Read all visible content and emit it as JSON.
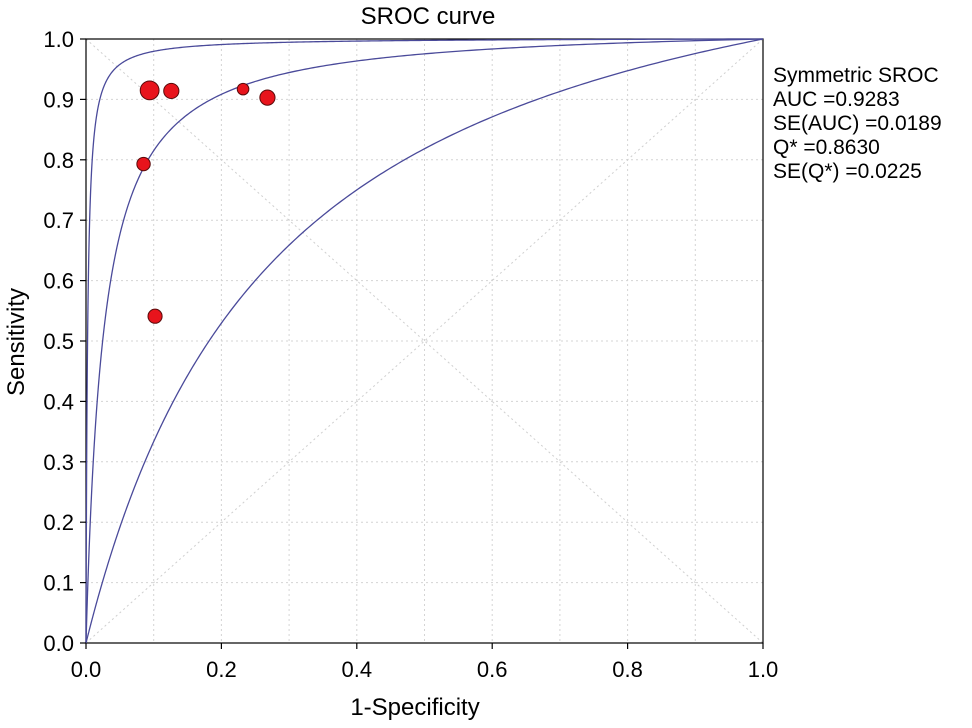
{
  "chart_data": {
    "type": "scatter",
    "title": "SROC curve",
    "xlabel": "1-Specificity",
    "ylabel": "Sensitivity",
    "xlim": [
      0.0,
      1.0
    ],
    "ylim": [
      0.0,
      1.0
    ],
    "x_ticks": [
      "0.0",
      "0.2",
      "0.4",
      "0.6",
      "0.8",
      "1.0"
    ],
    "y_ticks": [
      "0.0",
      "0.1",
      "0.2",
      "0.3",
      "0.4",
      "0.5",
      "0.6",
      "0.7",
      "0.8",
      "0.9",
      "1.0"
    ],
    "grid": true,
    "diagonals": true,
    "studies": [
      {
        "x": 0.094,
        "y": 0.915,
        "weight": 3
      },
      {
        "x": 0.126,
        "y": 0.914,
        "weight": 2
      },
      {
        "x": 0.232,
        "y": 0.917,
        "weight": 1
      },
      {
        "x": 0.268,
        "y": 0.903,
        "weight": 2
      },
      {
        "x": 0.085,
        "y": 0.793,
        "weight": 1.5
      },
      {
        "x": 0.102,
        "y": 0.541,
        "weight": 1.7
      }
    ],
    "sroc_curves": [
      {
        "role": "upper",
        "q": 0.9541
      },
      {
        "role": "summary",
        "q": 0.863
      },
      {
        "role": "lower",
        "q": 0.6797
      }
    ],
    "marker_color": "#e8141c",
    "curve_color": "#4a4a9a",
    "stats": [
      "Symmetric SROC",
      "AUC =0.9283",
      "SE(AUC) =0.0189",
      "Q* =0.8630",
      "SE(Q*) =0.0225"
    ]
  }
}
